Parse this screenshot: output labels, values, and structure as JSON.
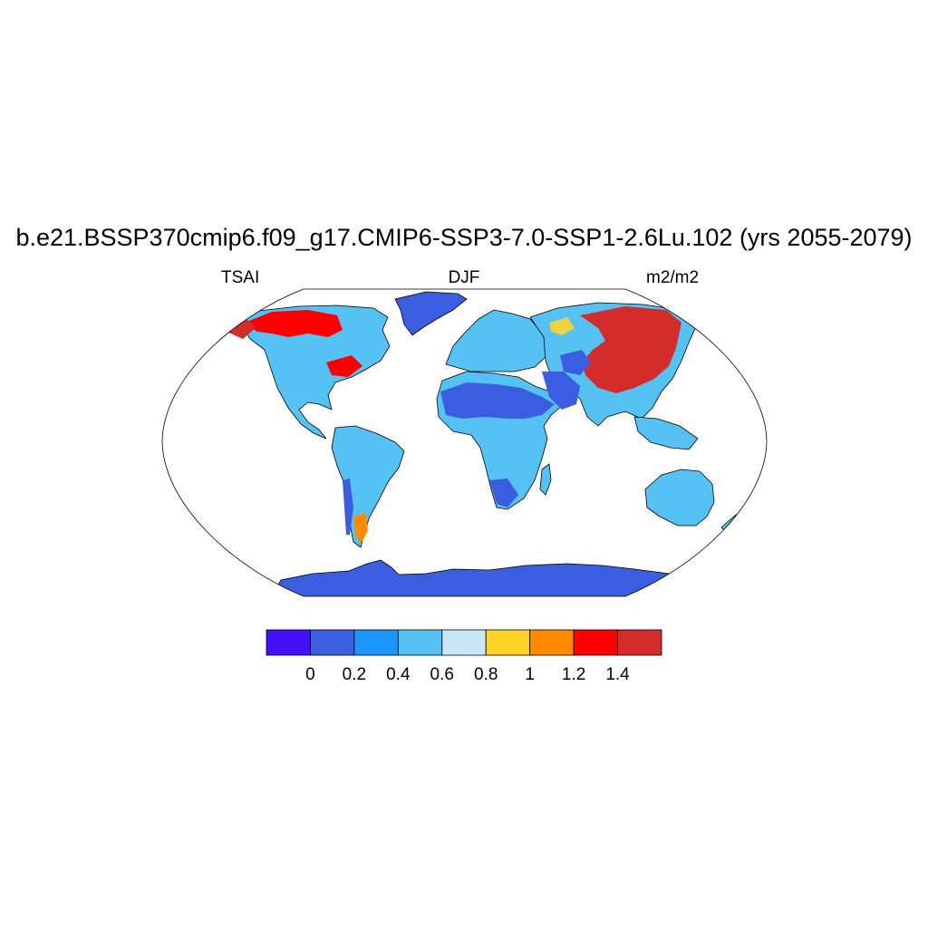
{
  "title": "b.e21.BSSP370cmip6.f09_g17.CMIP6-SSP3-7.0-SSP1-2.6Lu.102 (yrs 2055-2079)",
  "subtitle_left": "TSAI",
  "subtitle_center": "DJF",
  "subtitle_right": "m2/m2",
  "map": {
    "projection": "robinson",
    "ocean_color": "#ffffff",
    "coastline_color": "#000000"
  },
  "colorbar": {
    "colors": [
      "#4410f5",
      "#3b5ee1",
      "#1a95fa",
      "#56c2f3",
      "#c8e6f8",
      "#ffd42a",
      "#ff8a00",
      "#ff0000",
      "#d42b2b"
    ],
    "tick_labels": [
      "0",
      "0.2",
      "0.4",
      "0.6",
      "0.8",
      "1",
      "1.2",
      "1.4"
    ]
  }
}
